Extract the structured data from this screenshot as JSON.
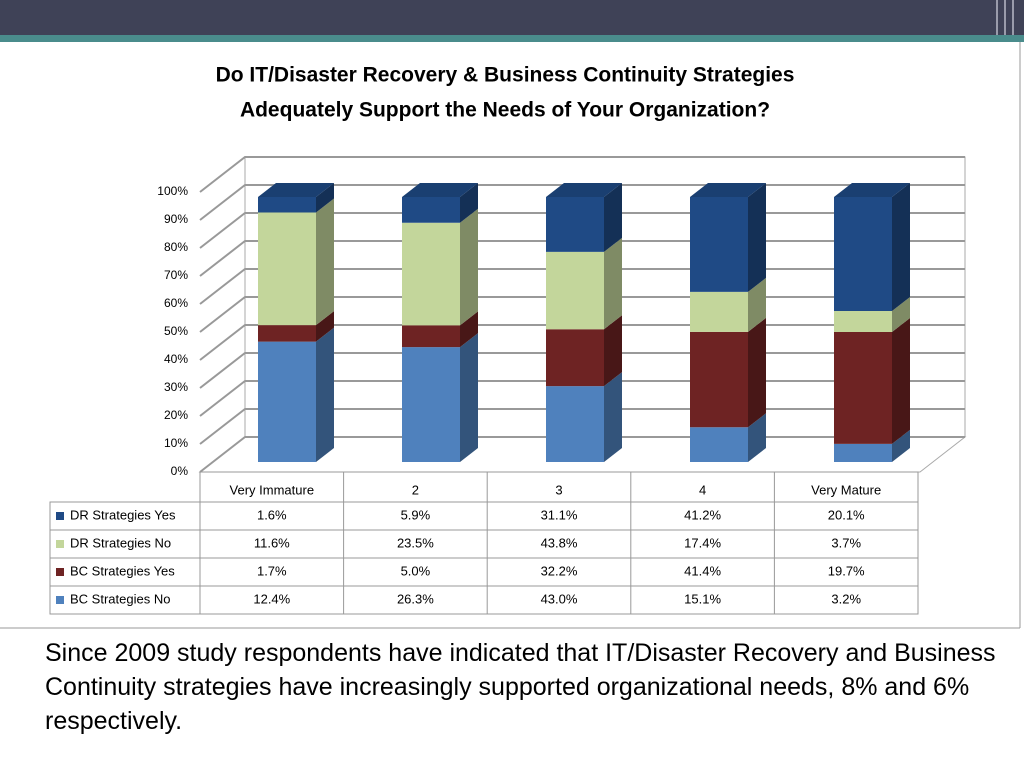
{
  "chart_data": {
    "type": "bar",
    "stacking": "percent",
    "title": [
      "Do IT/Disaster Recovery & Business Continuity Strategies",
      "Adequately Support the Needs of Your Organization?"
    ],
    "categories": [
      "Very Immature",
      "2",
      "3",
      "4",
      "Very Mature"
    ],
    "series": [
      {
        "name": "DR Strategies Yes",
        "color": "#1f4a85",
        "values": [
          1.6,
          5.9,
          31.1,
          41.2,
          20.1
        ],
        "value_labels": [
          "1.6%",
          "5.9%",
          "31.1%",
          "41.2%",
          "20.1%"
        ]
      },
      {
        "name": "DR Strategies No",
        "color": "#c3d69b",
        "values": [
          11.6,
          23.5,
          43.8,
          17.4,
          3.7
        ],
        "value_labels": [
          "11.6%",
          "23.5%",
          "43.8%",
          "17.4%",
          "3.7%"
        ]
      },
      {
        "name": "BC Strategies Yes",
        "color": "#6e2323",
        "values": [
          1.7,
          5.0,
          32.2,
          41.4,
          19.7
        ],
        "value_labels": [
          "1.7%",
          "5.0%",
          "32.2%",
          "41.4%",
          "19.7%"
        ]
      },
      {
        "name": "BC Strategies No",
        "color": "#4f81bd",
        "values": [
          12.4,
          26.3,
          43.0,
          15.1,
          3.2
        ],
        "value_labels": [
          "12.4%",
          "26.3%",
          "43.0%",
          "15.1%",
          "3.2%"
        ]
      }
    ],
    "ylim": [
      0,
      100
    ],
    "yticks": [
      {
        "value": 0,
        "label": "0%"
      },
      {
        "value": 10,
        "label": "10%"
      },
      {
        "value": 20,
        "label": "20%"
      },
      {
        "value": 30,
        "label": "30%"
      },
      {
        "value": 40,
        "label": "40%"
      },
      {
        "value": 50,
        "label": "50%"
      },
      {
        "value": 60,
        "label": "60%"
      },
      {
        "value": 70,
        "label": "70%"
      },
      {
        "value": 80,
        "label": "80%"
      },
      {
        "value": 90,
        "label": "90%"
      },
      {
        "value": 100,
        "label": "100%"
      }
    ],
    "grid": true
  },
  "body_text": "Since 2009 study respondents have indicated that IT/Disaster Recovery and Business Continuity strategies have increasingly supported organizational needs, 8% and 6% respectively."
}
